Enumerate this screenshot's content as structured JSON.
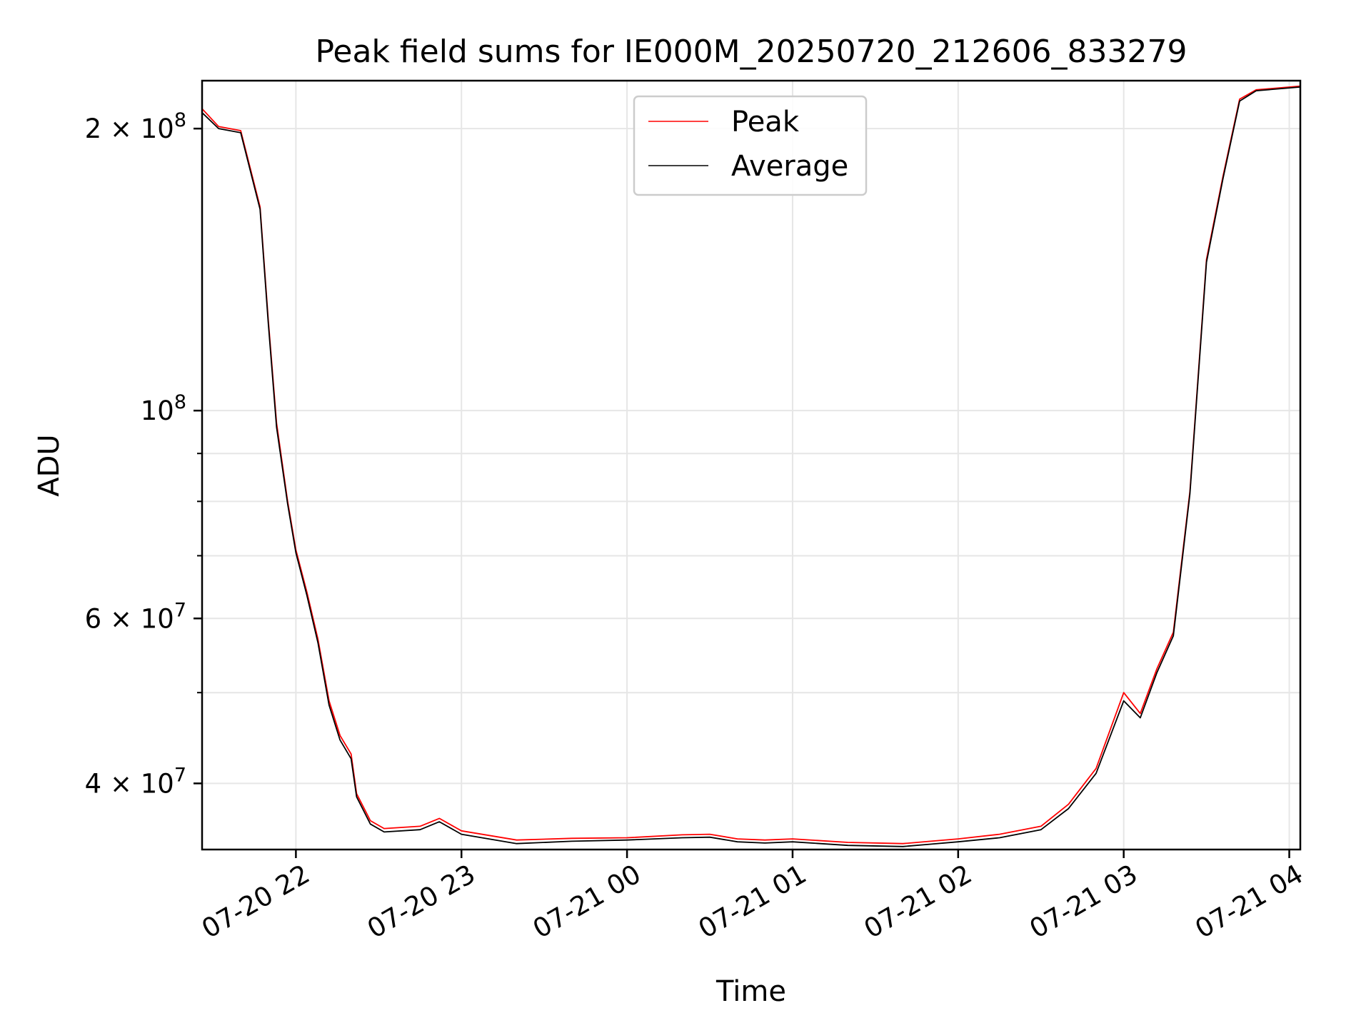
{
  "chart_data": {
    "type": "line",
    "title": "Peak field sums for IE000M_20250720_212606_833279",
    "xlabel": "Time",
    "ylabel": "ADU",
    "x_axis": {
      "type": "datetime",
      "range": [
        "2025-07-20 21:26",
        "2025-07-21 04:04"
      ],
      "ticks": [
        {
          "value": "2025-07-20 22:00",
          "label": "07-20 22"
        },
        {
          "value": "2025-07-20 23:00",
          "label": "07-20 23"
        },
        {
          "value": "2025-07-21 00:00",
          "label": "07-21 00"
        },
        {
          "value": "2025-07-21 01:00",
          "label": "07-21 01"
        },
        {
          "value": "2025-07-21 02:00",
          "label": "07-21 02"
        },
        {
          "value": "2025-07-21 03:00",
          "label": "07-21 03"
        },
        {
          "value": "2025-07-21 04:00",
          "label": "07-21 04"
        }
      ]
    },
    "y_axis": {
      "scale": "log",
      "range": [
        34000000,
        225000000
      ],
      "ticks": [
        {
          "value": 40000000,
          "label_base": "4 × 10",
          "label_exp": "7"
        },
        {
          "value": 60000000,
          "label_base": "6 × 10",
          "label_exp": "7"
        },
        {
          "value": 100000000,
          "label_base": "10",
          "label_exp": "8"
        },
        {
          "value": 200000000,
          "label_base": "2 × 10",
          "label_exp": "8"
        }
      ],
      "minor_ticks": [
        30000000,
        50000000,
        70000000,
        80000000,
        90000000
      ]
    },
    "grid": true,
    "legend_position": "top-center",
    "series": [
      {
        "name": "Peak",
        "color": "#ff0000",
        "points": [
          [
            "2025-07-20 21:26",
            210000000
          ],
          [
            "2025-07-20 21:32",
            201000000
          ],
          [
            "2025-07-20 21:40",
            199000000
          ],
          [
            "2025-07-20 21:47",
            165000000
          ],
          [
            "2025-07-20 21:50",
            125000000
          ],
          [
            "2025-07-20 21:53",
            97000000
          ],
          [
            "2025-07-20 21:57",
            80000000
          ],
          [
            "2025-07-20 22:00",
            71000000
          ],
          [
            "2025-07-20 22:04",
            64000000
          ],
          [
            "2025-07-20 22:08",
            57000000
          ],
          [
            "2025-07-20 22:12",
            49000000
          ],
          [
            "2025-07-20 22:16",
            45000000
          ],
          [
            "2025-07-20 22:20",
            43000000
          ],
          [
            "2025-07-20 22:22",
            39000000
          ],
          [
            "2025-07-20 22:27",
            36500000
          ],
          [
            "2025-07-20 22:32",
            35800000
          ],
          [
            "2025-07-20 22:45",
            36000000
          ],
          [
            "2025-07-20 22:52",
            36700000
          ],
          [
            "2025-07-20 23:00",
            35600000
          ],
          [
            "2025-07-20 23:20",
            34800000
          ],
          [
            "2025-07-20 23:40",
            34950000
          ],
          [
            "2025-07-21 00:00",
            35000000
          ],
          [
            "2025-07-21 00:20",
            35250000
          ],
          [
            "2025-07-21 00:30",
            35300000
          ],
          [
            "2025-07-21 00:40",
            34900000
          ],
          [
            "2025-07-21 00:50",
            34800000
          ],
          [
            "2025-07-21 01:00",
            34900000
          ],
          [
            "2025-07-21 01:20",
            34600000
          ],
          [
            "2025-07-21 01:40",
            34500000
          ],
          [
            "2025-07-21 01:50",
            34700000
          ],
          [
            "2025-07-21 02:00",
            34900000
          ],
          [
            "2025-07-21 02:15",
            35300000
          ],
          [
            "2025-07-21 02:30",
            36000000
          ],
          [
            "2025-07-21 02:40",
            38000000
          ],
          [
            "2025-07-21 02:50",
            41500000
          ],
          [
            "2025-07-21 03:00",
            50000000
          ],
          [
            "2025-07-21 03:06",
            47500000
          ],
          [
            "2025-07-21 03:12",
            53000000
          ],
          [
            "2025-07-21 03:18",
            58000000
          ],
          [
            "2025-07-21 03:24",
            82000000
          ],
          [
            "2025-07-21 03:30",
            145000000
          ],
          [
            "2025-07-21 03:36",
            178000000
          ],
          [
            "2025-07-21 03:42",
            215000000
          ],
          [
            "2025-07-21 03:48",
            220000000
          ],
          [
            "2025-07-21 04:04",
            222000000
          ]
        ]
      },
      {
        "name": "Average",
        "color": "#000000",
        "points": [
          [
            "2025-07-20 21:26",
            208000000
          ],
          [
            "2025-07-20 21:32",
            200000000
          ],
          [
            "2025-07-20 21:40",
            198000000
          ],
          [
            "2025-07-20 21:47",
            164000000
          ],
          [
            "2025-07-20 21:50",
            124000000
          ],
          [
            "2025-07-20 21:53",
            96000000
          ],
          [
            "2025-07-20 21:57",
            79500000
          ],
          [
            "2025-07-20 22:00",
            70500000
          ],
          [
            "2025-07-20 22:04",
            63500000
          ],
          [
            "2025-07-20 22:08",
            56500000
          ],
          [
            "2025-07-20 22:12",
            48500000
          ],
          [
            "2025-07-20 22:16",
            44500000
          ],
          [
            "2025-07-20 22:20",
            42500000
          ],
          [
            "2025-07-20 22:22",
            38700000
          ],
          [
            "2025-07-20 22:27",
            36200000
          ],
          [
            "2025-07-20 22:32",
            35500000
          ],
          [
            "2025-07-20 22:45",
            35700000
          ],
          [
            "2025-07-20 22:52",
            36400000
          ],
          [
            "2025-07-20 23:00",
            35300000
          ],
          [
            "2025-07-20 23:20",
            34500000
          ],
          [
            "2025-07-20 23:40",
            34700000
          ],
          [
            "2025-07-21 00:00",
            34800000
          ],
          [
            "2025-07-21 00:20",
            35000000
          ],
          [
            "2025-07-21 00:30",
            35050000
          ],
          [
            "2025-07-21 00:40",
            34650000
          ],
          [
            "2025-07-21 00:50",
            34550000
          ],
          [
            "2025-07-21 01:00",
            34650000
          ],
          [
            "2025-07-21 01:20",
            34350000
          ],
          [
            "2025-07-21 01:40",
            34250000
          ],
          [
            "2025-07-21 01:50",
            34450000
          ],
          [
            "2025-07-21 02:00",
            34650000
          ],
          [
            "2025-07-21 02:15",
            35000000
          ],
          [
            "2025-07-21 02:30",
            35700000
          ],
          [
            "2025-07-21 02:40",
            37600000
          ],
          [
            "2025-07-21 02:50",
            41000000
          ],
          [
            "2025-07-21 03:00",
            49000000
          ],
          [
            "2025-07-21 03:06",
            47000000
          ],
          [
            "2025-07-21 03:12",
            52500000
          ],
          [
            "2025-07-21 03:18",
            57500000
          ],
          [
            "2025-07-21 03:24",
            81500000
          ],
          [
            "2025-07-21 03:30",
            144000000
          ],
          [
            "2025-07-21 03:36",
            177000000
          ],
          [
            "2025-07-21 03:42",
            214000000
          ],
          [
            "2025-07-21 03:48",
            219500000
          ],
          [
            "2025-07-21 04:04",
            221500000
          ]
        ]
      }
    ]
  }
}
